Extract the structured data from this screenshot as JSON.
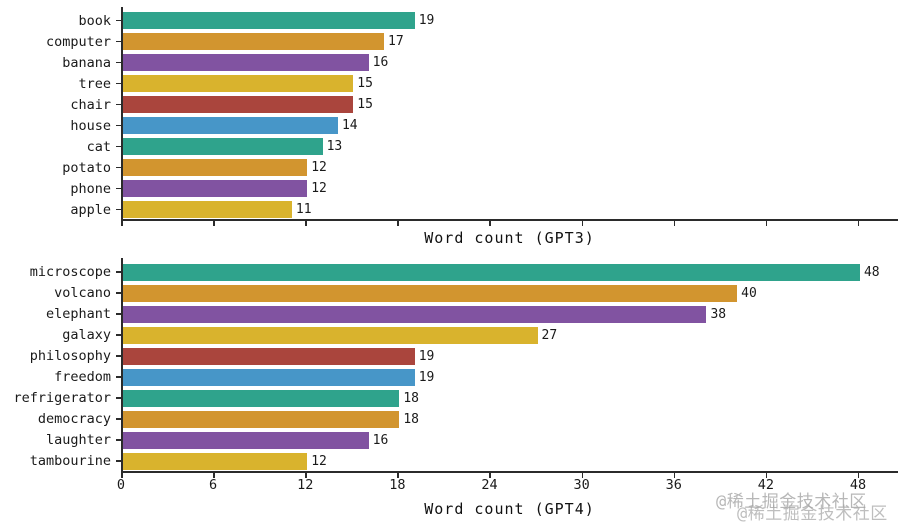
{
  "page": {
    "background": "#ffffff",
    "axis_color": "#2b2b2b",
    "text_color": "#1a1a1a"
  },
  "palette": [
    "#2fa38c",
    "#d2952f",
    "#8153a1",
    "#d9b32d",
    "#aa453d",
    "#4796c8"
  ],
  "chart_data": [
    {
      "type": "bar",
      "orientation": "horizontal",
      "xlabel": "Word count (GPT3)",
      "categories": [
        "book",
        "computer",
        "banana",
        "tree",
        "chair",
        "house",
        "cat",
        "potato",
        "phone",
        "apple"
      ],
      "values": [
        19,
        17,
        16,
        15,
        15,
        14,
        13,
        12,
        12,
        11
      ],
      "bar_value_labels": [
        "19",
        "17",
        "16",
        "15",
        "15",
        "14",
        "13",
        "12",
        "12",
        "11"
      ],
      "xlim": [
        0,
        50.6
      ],
      "xticks": [
        0,
        6,
        12,
        18,
        24,
        30,
        36,
        42,
        48
      ],
      "xtick_labels_visible": false,
      "grid": false,
      "legend": null,
      "color_cycle_note": "bars cycle through palette top to bottom"
    },
    {
      "type": "bar",
      "orientation": "horizontal",
      "xlabel": "Word count (GPT4)",
      "categories": [
        "microscope",
        "volcano",
        "elephant",
        "galaxy",
        "philosophy",
        "freedom",
        "refrigerator",
        "democracy",
        "laughter",
        "tambourine"
      ],
      "values": [
        48,
        40,
        38,
        27,
        19,
        19,
        18,
        18,
        16,
        12
      ],
      "bar_value_labels": [
        "48",
        "40",
        "38",
        "27",
        "19",
        "19",
        "18",
        "18",
        "16",
        "12"
      ],
      "xlim": [
        0,
        50.6
      ],
      "xticks": [
        0,
        6,
        12,
        18,
        24,
        30,
        36,
        42,
        48
      ],
      "xtick_labels": [
        "0",
        "6",
        "12",
        "18",
        "24",
        "30",
        "36",
        "42",
        "48"
      ],
      "xtick_labels_visible": true,
      "grid": false,
      "legend": null,
      "color_cycle_note": "bars cycle through palette top to bottom"
    }
  ],
  "watermark": {
    "line1": "@稀土掘金技术社区",
    "line2": "@稀土掘金技术社区",
    "color": "#a6a6a6"
  }
}
